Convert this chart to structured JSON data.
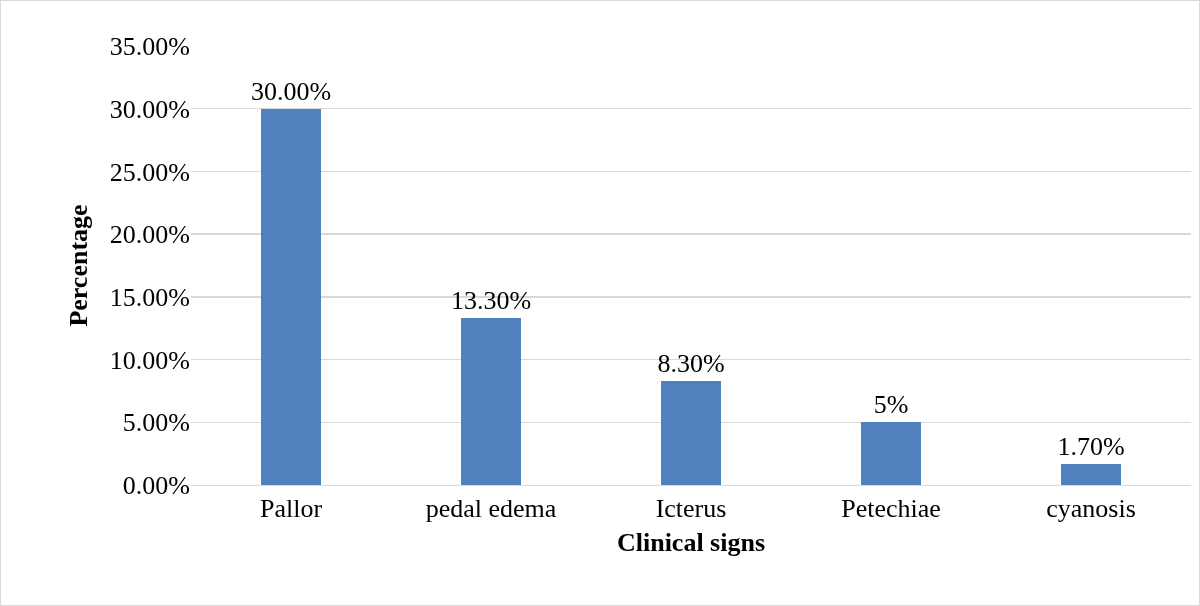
{
  "chart_data": {
    "type": "bar",
    "xlabel": "Clinical signs",
    "ylabel": "Percentage",
    "categories": [
      "Pallor",
      "pedal edema",
      "Icterus",
      "Petechiae",
      "cyanosis"
    ],
    "values": [
      30,
      13.3,
      8.3,
      5,
      1.7
    ],
    "value_labels": [
      "30.00%",
      "13.30%",
      "8.30%",
      "5%",
      "1.70%"
    ],
    "color": "#4f81bd",
    "ylim": [
      0,
      35
    ],
    "yticks": [
      {
        "value": 0,
        "label": "0.00%"
      },
      {
        "value": 5,
        "label": "5.00%"
      },
      {
        "value": 10,
        "label": "10.00%"
      },
      {
        "value": 15,
        "label": "15.00%"
      },
      {
        "value": 20,
        "label": "20.00%"
      },
      {
        "value": 25,
        "label": "25.00%"
      },
      {
        "value": 30,
        "label": "30.00%"
      },
      {
        "value": 35,
        "label": "35.00%"
      }
    ],
    "grid": "y"
  }
}
